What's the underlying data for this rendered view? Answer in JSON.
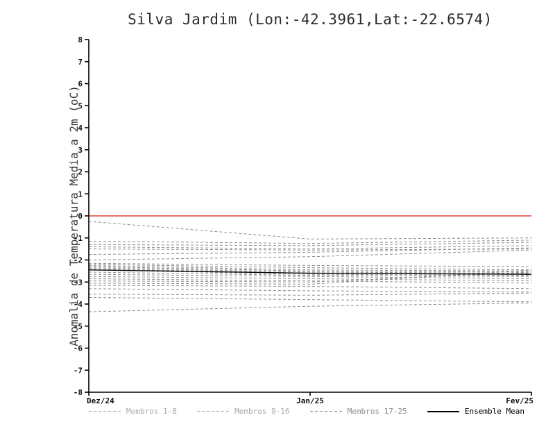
{
  "chart_data": {
    "type": "line",
    "title": "Silva Jardim (Lon:-42.3961,Lat:-22.6574)",
    "ylabel": "Anomalia de Temperatura Media a 2m (oC)",
    "xlabel": "",
    "x": [
      0,
      1,
      2
    ],
    "x_tick_labels": [
      "Dez/24",
      "Jan/25",
      "Fev/25"
    ],
    "ylim": [
      -8,
      8
    ],
    "y_tick_step": 1,
    "grid": false,
    "zero_line": {
      "y": 0,
      "color": "#e23b30",
      "style": "solid"
    },
    "colors": {
      "members": "#8c8c8c",
      "mean": "#000000",
      "axis": "#000000",
      "tick_text": "#111111"
    },
    "members": [
      [
        -0.25,
        -1.05,
        -1.0
      ],
      [
        -1.15,
        -1.25,
        -1.1
      ],
      [
        -1.3,
        -1.35,
        -1.2
      ],
      [
        -1.4,
        -1.5,
        -1.35
      ],
      [
        -1.5,
        -1.55,
        -1.5
      ],
      [
        -1.75,
        -1.65,
        -1.45
      ],
      [
        -2.0,
        -1.85,
        -1.55
      ],
      [
        -2.15,
        -2.25,
        -2.3
      ],
      [
        -2.2,
        -2.35,
        -2.45
      ],
      [
        -2.25,
        -2.45,
        -2.5
      ],
      [
        -2.3,
        -2.5,
        -2.55
      ],
      [
        -2.35,
        -2.55,
        -2.6
      ],
      [
        -2.4,
        -2.6,
        -2.65
      ],
      [
        -2.45,
        -2.65,
        -2.7
      ],
      [
        -2.55,
        -2.7,
        -2.75
      ],
      [
        -2.65,
        -2.75,
        -2.85
      ],
      [
        -2.75,
        -2.85,
        -2.95
      ],
      [
        -2.85,
        -2.95,
        -3.05
      ],
      [
        -2.95,
        -3.0,
        -2.55
      ],
      [
        -3.05,
        -3.1,
        -2.45
      ],
      [
        -3.15,
        -3.2,
        -3.3
      ],
      [
        -3.3,
        -3.4,
        -3.45
      ],
      [
        -3.55,
        -3.6,
        -3.5
      ],
      [
        -3.7,
        -3.8,
        -3.9
      ],
      [
        -4.35,
        -4.1,
        -3.95
      ]
    ],
    "ensemble_mean": [
      -2.45,
      -2.6,
      -2.65
    ],
    "legend": [
      {
        "label": "Membros 1-8",
        "style": "dashed",
        "color": "#a8a8a8"
      },
      {
        "label": "Membros 9-16",
        "style": "dashed",
        "color": "#a8a8a8"
      },
      {
        "label": "Membros 17-25",
        "style": "dashed",
        "color": "#8c8c8c"
      },
      {
        "label": "Ensemble Mean",
        "style": "solid",
        "color": "#000000"
      }
    ]
  }
}
